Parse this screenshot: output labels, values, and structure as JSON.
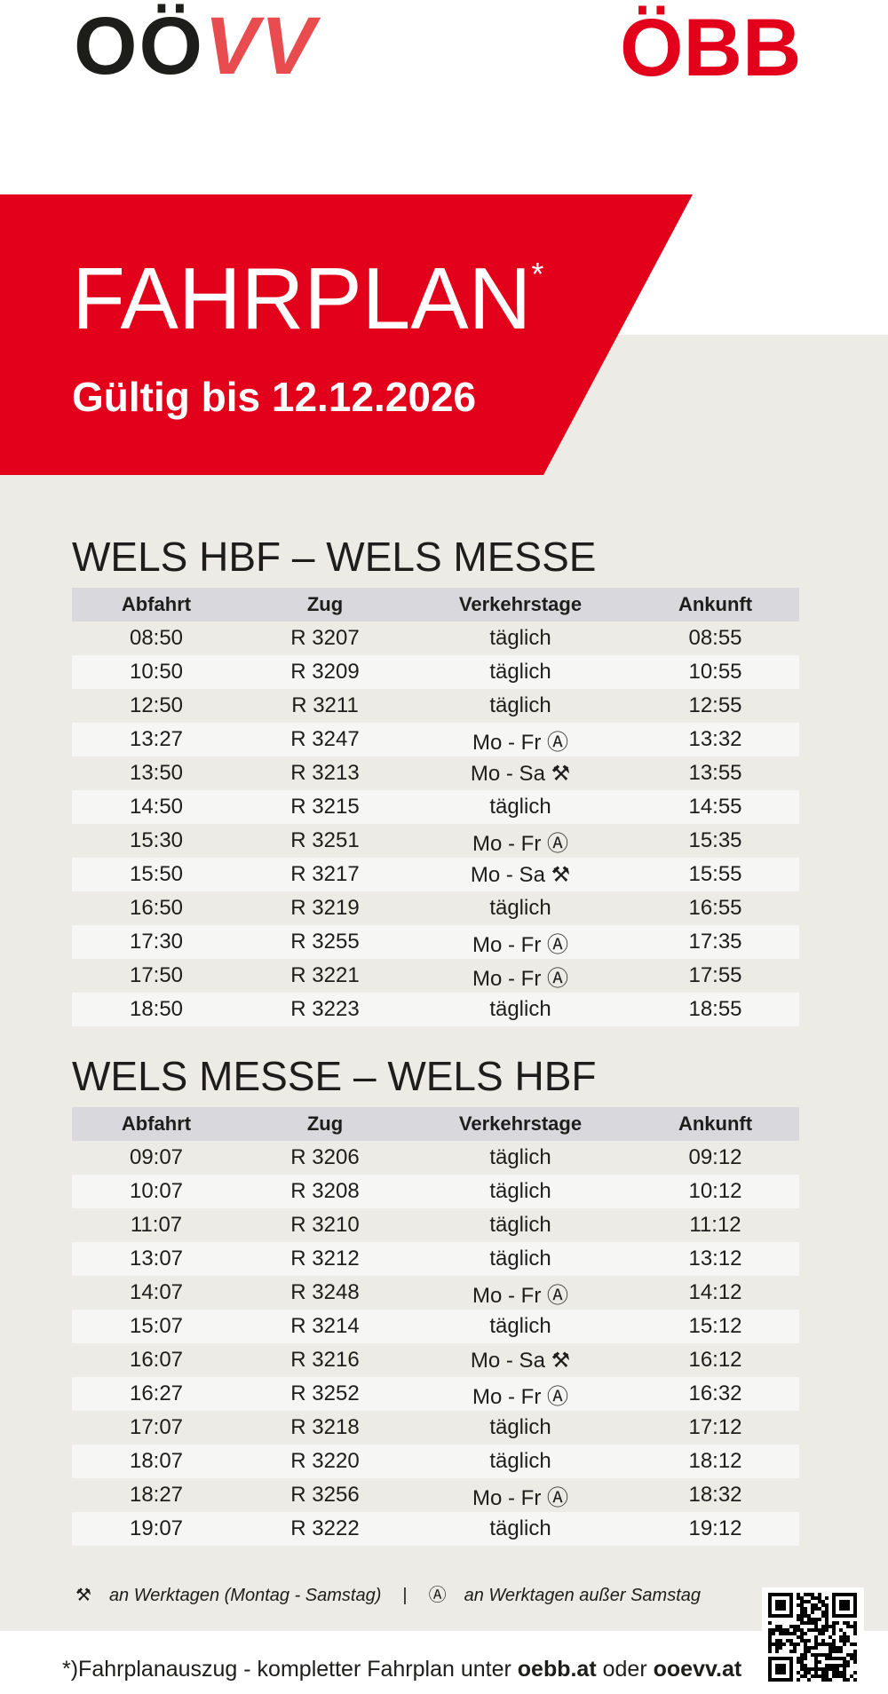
{
  "logos": {
    "oovv": {
      "dark": "OÖ",
      "red": "VV"
    },
    "oebb": "ÖBB"
  },
  "banner": {
    "title": "FAHRPLAN",
    "asterisk": "*",
    "subtitle": "Gültig bis 12.12.2026"
  },
  "sections": [
    {
      "title": "WELS HBF – WELS MESSE",
      "columns": [
        "Abfahrt",
        "Zug",
        "Verkehrstage",
        "Ankunft"
      ],
      "rows": [
        [
          "08:50",
          "R 3207",
          "täglich",
          "08:55"
        ],
        [
          "10:50",
          "R 3209",
          "täglich",
          "10:55"
        ],
        [
          "12:50",
          "R 3211",
          "täglich",
          "12:55"
        ],
        [
          "13:27",
          "R 3247",
          "Mo - Fr Ⓐ",
          "13:32"
        ],
        [
          "13:50",
          "R 3213",
          "Mo - Sa ⚒",
          "13:55"
        ],
        [
          "14:50",
          "R 3215",
          "täglich",
          "14:55"
        ],
        [
          "15:30",
          "R 3251",
          "Mo - Fr Ⓐ",
          "15:35"
        ],
        [
          "15:50",
          "R 3217",
          "Mo - Sa ⚒",
          "15:55"
        ],
        [
          "16:50",
          "R 3219",
          "täglich",
          "16:55"
        ],
        [
          "17:30",
          "R 3255",
          "Mo - Fr Ⓐ",
          "17:35"
        ],
        [
          "17:50",
          "R 3221",
          "Mo - Fr Ⓐ",
          "17:55"
        ],
        [
          "18:50",
          "R 3223",
          "täglich",
          "18:55"
        ]
      ]
    },
    {
      "title": "WELS MESSE – WELS HBF",
      "columns": [
        "Abfahrt",
        "Zug",
        "Verkehrstage",
        "Ankunft"
      ],
      "rows": [
        [
          "09:07",
          "R 3206",
          "täglich",
          "09:12"
        ],
        [
          "10:07",
          "R 3208",
          "täglich",
          "10:12"
        ],
        [
          "11:07",
          "R 3210",
          "täglich",
          "11:12"
        ],
        [
          "13:07",
          "R 3212",
          "täglich",
          "13:12"
        ],
        [
          "14:07",
          "R 3248",
          "Mo - Fr Ⓐ",
          "14:12"
        ],
        [
          "15:07",
          "R 3214",
          "täglich",
          "15:12"
        ],
        [
          "16:07",
          "R 3216",
          "Mo - Sa ⚒",
          "16:12"
        ],
        [
          "16:27",
          "R 3252",
          "Mo - Fr Ⓐ",
          "16:32"
        ],
        [
          "17:07",
          "R 3218",
          "täglich",
          "17:12"
        ],
        [
          "18:07",
          "R 3220",
          "täglich",
          "18:12"
        ],
        [
          "18:27",
          "R 3256",
          "Mo - Fr Ⓐ",
          "18:32"
        ],
        [
          "19:07",
          "R 3222",
          "täglich",
          "19:12"
        ]
      ]
    }
  ],
  "legend": [
    {
      "symbol": "⚒",
      "text": "an Werktagen (Montag - Samstag)"
    },
    {
      "separator": "|"
    },
    {
      "symbol": "Ⓐ",
      "text": "an Werktagen außer Samstag"
    }
  ],
  "footer": {
    "text": "*)Fahrplanauszug - kompletter Fahrplan unter",
    "link1": "oebb.at",
    "middle": "oder",
    "link2": "ooevv.at"
  }
}
